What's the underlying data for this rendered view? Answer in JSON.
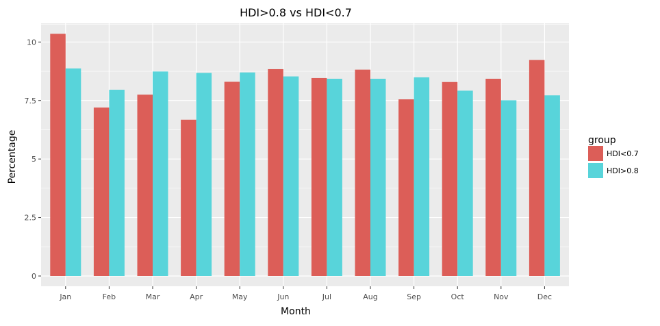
{
  "chart_data": {
    "type": "bar",
    "title": "HDI>0.8 vs HDI<0.7",
    "xlabel": "Month",
    "ylabel": "Percentage",
    "categories": [
      "Jan",
      "Feb",
      "Mar",
      "Apr",
      "May",
      "Jun",
      "Jul",
      "Aug",
      "Sep",
      "Oct",
      "Nov",
      "Dec"
    ],
    "series": [
      {
        "name": "HDI<0.7",
        "color": "#dc5e58",
        "values": [
          10.35,
          7.2,
          7.75,
          6.68,
          8.3,
          8.84,
          8.46,
          8.82,
          7.55,
          8.29,
          8.43,
          9.23
        ]
      },
      {
        "name": "HDI>0.8",
        "color": "#58d4da",
        "values": [
          8.87,
          7.96,
          8.74,
          8.68,
          8.7,
          8.53,
          8.43,
          8.43,
          8.49,
          7.92,
          7.51,
          7.72
        ]
      }
    ],
    "ylim": [
      0,
      10.8
    ],
    "yticks": [
      0,
      2.5,
      5,
      7.5,
      10
    ],
    "ytick_labels": [
      "0",
      "2.5",
      "5",
      "7.5",
      "10"
    ],
    "grid": true,
    "legend": {
      "title": "group",
      "placement": "right"
    },
    "panel_color": "#ebebeb",
    "grid_color": "#ffffff"
  }
}
